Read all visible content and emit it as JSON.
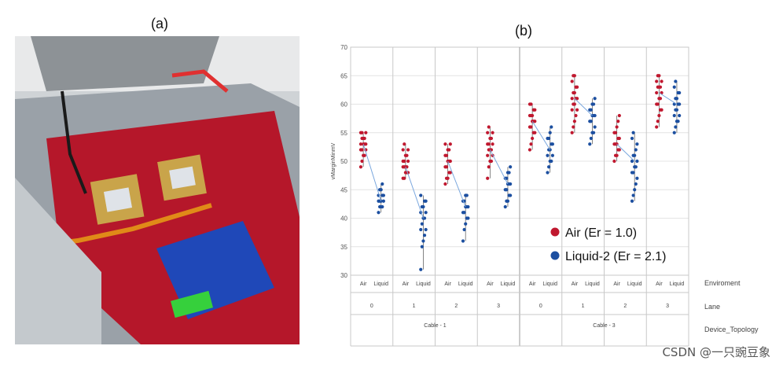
{
  "panels": {
    "a": "(a)",
    "b": "(b)"
  },
  "photo": {
    "description_icon": "server-motherboard-photo",
    "colors": {
      "board": "#b5172a",
      "heatsink": "#c9a44a",
      "card": "#1f48b8",
      "chassis": "#9aa1a8",
      "cable": "#e08a18",
      "green": "#36d03c"
    }
  },
  "chart_data": {
    "type": "scatter",
    "ylabel": "vMarginMinmV",
    "ylim": [
      30,
      70
    ],
    "yticks": [
      30,
      35,
      40,
      45,
      50,
      55,
      60,
      65,
      70
    ],
    "grid": true,
    "legend_position": "center-right",
    "legend": [
      {
        "label": "Air  (Er = 1.0)",
        "color": "#c0182f"
      },
      {
        "label": "Liquid-2 (Er = 2.1)",
        "color": "#1c4fa0"
      }
    ],
    "row_labels": {
      "environment": "Enviroment",
      "lane": "Lane",
      "topology": "Device_Topology"
    },
    "topologies": [
      {
        "name": "Cable - 1",
        "lanes": [
          "0",
          "1",
          "2",
          "3"
        ]
      },
      {
        "name": "Cable - 3",
        "lanes": [
          "0",
          "1",
          "2",
          "3"
        ]
      }
    ],
    "environments": [
      "Air",
      "Liquid"
    ],
    "groups": [
      {
        "topology": "Cable - 1",
        "lane": "0",
        "air": {
          "min": 49,
          "max": 55,
          "mean": 53,
          "points": [
            49,
            50,
            51,
            51,
            52,
            52,
            52,
            53,
            53,
            53,
            53,
            54,
            54,
            54,
            55,
            55,
            55
          ]
        },
        "liquid": {
          "min": 41,
          "max": 46,
          "mean": 43,
          "points": [
            41,
            42,
            42,
            42,
            43,
            43,
            43,
            43,
            44,
            44,
            44,
            45,
            45,
            46
          ]
        }
      },
      {
        "topology": "Cable - 1",
        "lane": "1",
        "air": {
          "min": 47,
          "max": 53,
          "mean": 49,
          "points": [
            47,
            47,
            48,
            48,
            48,
            49,
            49,
            49,
            49,
            50,
            50,
            50,
            51,
            51,
            52,
            52,
            53
          ]
        },
        "liquid": {
          "min": 31,
          "max": 44,
          "mean": 40,
          "points": [
            31,
            35,
            36,
            37,
            38,
            38,
            39,
            40,
            40,
            41,
            41,
            42,
            42,
            43,
            43,
            44
          ]
        }
      },
      {
        "topology": "Cable - 1",
        "lane": "2",
        "air": {
          "min": 46,
          "max": 53,
          "mean": 50,
          "points": [
            46,
            47,
            47,
            48,
            48,
            49,
            49,
            50,
            50,
            50,
            51,
            51,
            52,
            52,
            53,
            53
          ]
        },
        "liquid": {
          "min": 36,
          "max": 44,
          "mean": 42,
          "points": [
            36,
            38,
            39,
            40,
            40,
            41,
            41,
            42,
            42,
            42,
            43,
            43,
            44,
            44
          ]
        }
      },
      {
        "topology": "Cable - 1",
        "lane": "3",
        "air": {
          "min": 47,
          "max": 56,
          "mean": 52,
          "points": [
            47,
            49,
            50,
            50,
            51,
            51,
            52,
            52,
            52,
            53,
            53,
            53,
            54,
            54,
            55,
            55,
            56
          ]
        },
        "liquid": {
          "min": 42,
          "max": 49,
          "mean": 46,
          "points": [
            42,
            43,
            43,
            44,
            44,
            45,
            45,
            46,
            46,
            46,
            47,
            47,
            48,
            48,
            49
          ]
        }
      },
      {
        "topology": "Cable - 3",
        "lane": "0",
        "air": {
          "min": 52,
          "max": 60,
          "mean": 57,
          "points": [
            52,
            53,
            54,
            55,
            55,
            56,
            56,
            57,
            57,
            57,
            58,
            58,
            58,
            59,
            59,
            60,
            60
          ]
        },
        "liquid": {
          "min": 48,
          "max": 56,
          "mean": 52,
          "points": [
            48,
            49,
            50,
            50,
            51,
            51,
            52,
            52,
            53,
            53,
            54,
            54,
            55,
            56
          ]
        }
      },
      {
        "topology": "Cable - 3",
        "lane": "1",
        "air": {
          "min": 55,
          "max": 65,
          "mean": 61,
          "points": [
            55,
            56,
            57,
            58,
            59,
            59,
            60,
            60,
            61,
            61,
            61,
            62,
            62,
            63,
            63,
            64,
            65,
            65
          ]
        },
        "liquid": {
          "min": 53,
          "max": 61,
          "mean": 58,
          "points": [
            53,
            54,
            55,
            55,
            56,
            57,
            57,
            58,
            58,
            58,
            59,
            59,
            60,
            60,
            61
          ]
        }
      },
      {
        "topology": "Cable - 3",
        "lane": "2",
        "air": {
          "min": 50,
          "max": 58,
          "mean": 53,
          "points": [
            50,
            51,
            51,
            52,
            52,
            53,
            53,
            53,
            54,
            54,
            55,
            55,
            56,
            57,
            58
          ]
        },
        "liquid": {
          "min": 43,
          "max": 55,
          "mean": 50,
          "points": [
            43,
            44,
            45,
            46,
            47,
            48,
            48,
            49,
            49,
            50,
            50,
            51,
            51,
            52,
            53,
            54,
            55
          ]
        }
      },
      {
        "topology": "Cable - 3",
        "lane": "3",
        "air": {
          "min": 56,
          "max": 65,
          "mean": 62,
          "points": [
            56,
            57,
            58,
            59,
            59,
            60,
            60,
            61,
            61,
            62,
            62,
            63,
            63,
            63,
            64,
            64,
            65,
            65
          ]
        },
        "liquid": {
          "min": 55,
          "max": 64,
          "mean": 60,
          "points": [
            55,
            56,
            57,
            57,
            58,
            58,
            59,
            59,
            60,
            60,
            60,
            61,
            61,
            62,
            62,
            63,
            64
          ]
        }
      }
    ]
  },
  "watermark": "CSDN @一只豌豆象"
}
